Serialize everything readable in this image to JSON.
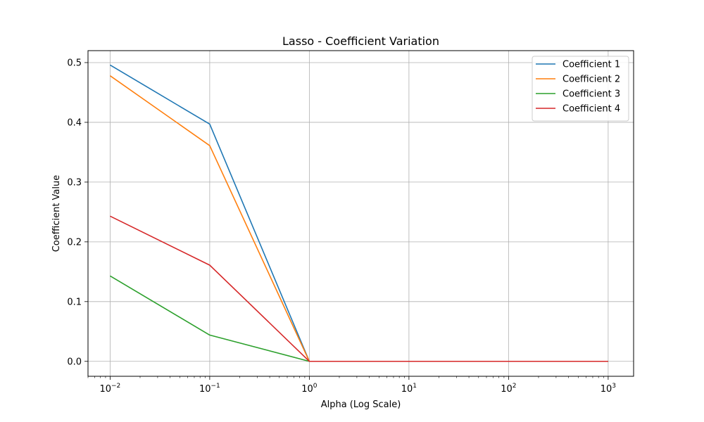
{
  "chart_data": {
    "type": "line",
    "title": "Lasso - Coefficient Variation",
    "xlabel": "Alpha (Log Scale)",
    "ylabel": "Coefficient Value",
    "xscale": "log",
    "xlim": [
      0.006,
      1800
    ],
    "ylim": [
      -0.025,
      0.52
    ],
    "grid": true,
    "legend_position": "top-right",
    "x": [
      0.01,
      0.1,
      1,
      10,
      100,
      1000
    ],
    "x_ticks": [
      {
        "value": 0.01,
        "base": "10",
        "exp": "−2"
      },
      {
        "value": 0.1,
        "base": "10",
        "exp": "−1"
      },
      {
        "value": 1,
        "base": "10",
        "exp": "0"
      },
      {
        "value": 10,
        "base": "10",
        "exp": "1"
      },
      {
        "value": 100,
        "base": "10",
        "exp": "2"
      },
      {
        "value": 1000,
        "base": "10",
        "exp": "3"
      }
    ],
    "y_ticks": [
      {
        "value": 0.0,
        "label": "0.0"
      },
      {
        "value": 0.1,
        "label": "0.1"
      },
      {
        "value": 0.2,
        "label": "0.2"
      },
      {
        "value": 0.3,
        "label": "0.3"
      },
      {
        "value": 0.4,
        "label": "0.4"
      },
      {
        "value": 0.5,
        "label": "0.5"
      }
    ],
    "series": [
      {
        "name": "Coefficient 1",
        "color": "#1f77b4",
        "values": [
          0.496,
          0.397,
          0.0,
          0.0,
          0.0,
          0.0
        ]
      },
      {
        "name": "Coefficient 2",
        "color": "#ff7f0e",
        "values": [
          0.478,
          0.361,
          0.0,
          0.0,
          0.0,
          0.0
        ]
      },
      {
        "name": "Coefficient 3",
        "color": "#2ca02c",
        "values": [
          0.143,
          0.044,
          0.0,
          0.0,
          0.0,
          0.0
        ]
      },
      {
        "name": "Coefficient 4",
        "color": "#d62728",
        "values": [
          0.243,
          0.161,
          0.0,
          0.0,
          0.0,
          0.0
        ]
      }
    ]
  }
}
